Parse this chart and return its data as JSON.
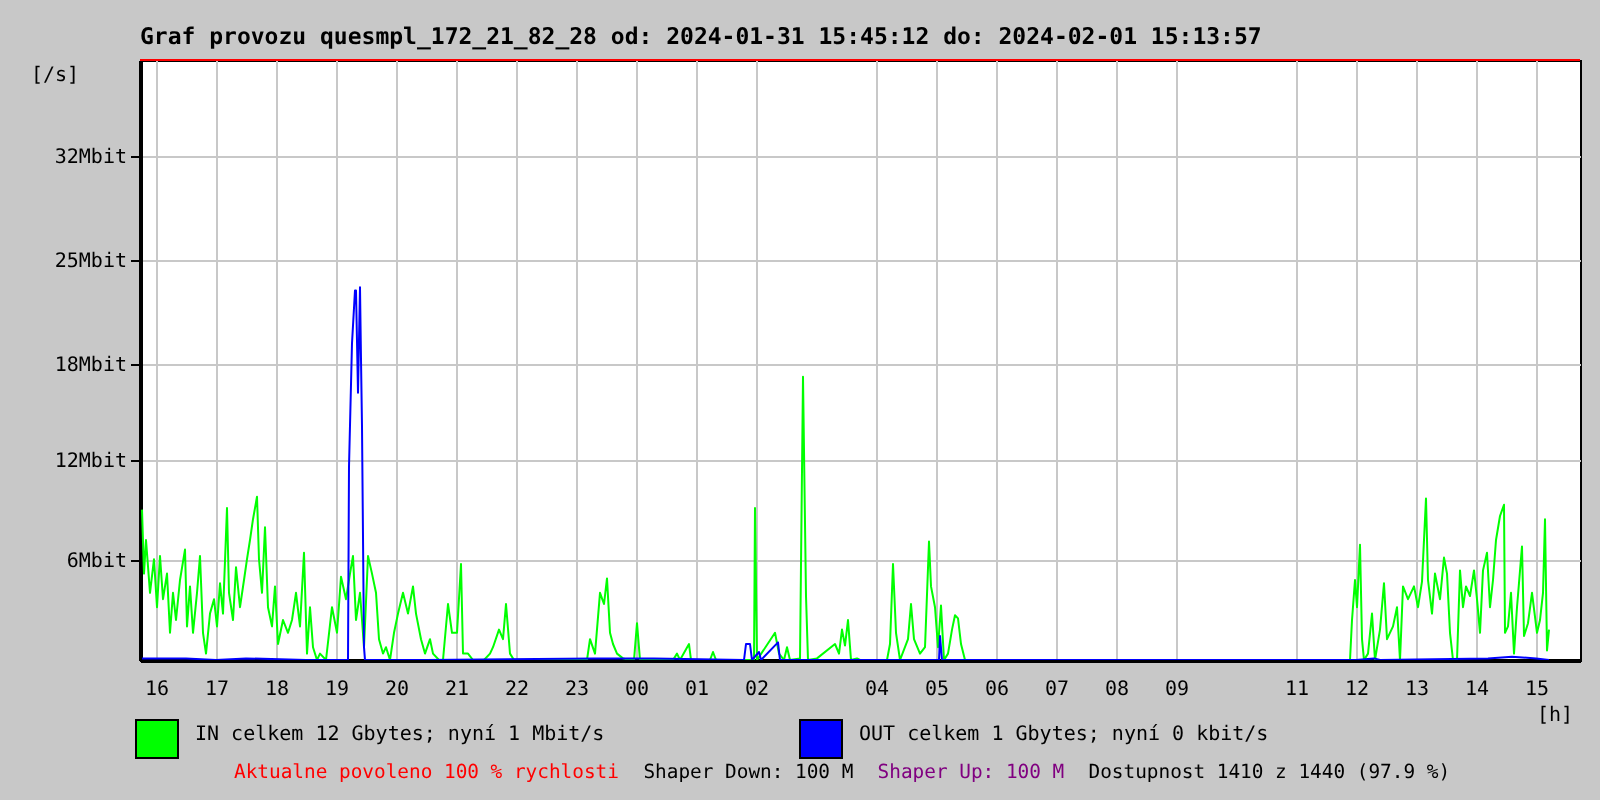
{
  "chart_data": {
    "type": "line",
    "title": "Graf provozu quesmpl_172_21_82_28 od: 2024-01-31 15:45:12 do: 2024-02-01 15:13:57",
    "xlabel": "[h]",
    "ylabel": "[/s]",
    "xlim": [
      "2024-01-31T15:44",
      "2024-02-01T15:44"
    ],
    "ylim": [
      0,
      37.5
    ],
    "xticks": [
      {
        "value": "2024-01-31T16:00",
        "label": "16"
      },
      {
        "value": "2024-01-31T17:00",
        "label": "17"
      },
      {
        "value": "2024-01-31T18:00",
        "label": "18"
      },
      {
        "value": "2024-01-31T19:00",
        "label": "19"
      },
      {
        "value": "2024-01-31T20:00",
        "label": "20"
      },
      {
        "value": "2024-01-31T21:00",
        "label": "21"
      },
      {
        "value": "2024-01-31T22:00",
        "label": "22"
      },
      {
        "value": "2024-01-31T23:00",
        "label": "23"
      },
      {
        "value": "2024-02-01T00:00",
        "label": "00"
      },
      {
        "value": "2024-02-01T01:00",
        "label": "01"
      },
      {
        "value": "2024-02-01T02:00",
        "label": "02"
      },
      {
        "value": "2024-02-01T04:00",
        "label": "04"
      },
      {
        "value": "2024-02-01T05:00",
        "label": "05"
      },
      {
        "value": "2024-02-01T06:00",
        "label": "06"
      },
      {
        "value": "2024-02-01T07:00",
        "label": "07"
      },
      {
        "value": "2024-02-01T08:00",
        "label": "08"
      },
      {
        "value": "2024-02-01T09:00",
        "label": "09"
      },
      {
        "value": "2024-02-01T11:00",
        "label": "11"
      },
      {
        "value": "2024-02-01T12:00",
        "label": "12"
      },
      {
        "value": "2024-02-01T13:00",
        "label": "13"
      },
      {
        "value": "2024-02-01T14:00",
        "label": "14"
      },
      {
        "value": "2024-02-01T15:00",
        "label": "15"
      }
    ],
    "yticks": [
      {
        "value": 6.25,
        "label": "6Mbit"
      },
      {
        "value": 12.5,
        "label": "12Mbit"
      },
      {
        "value": 18.5,
        "label": "18Mbit"
      },
      {
        "value": 25,
        "label": "25Mbit"
      },
      {
        "value": 31.5,
        "label": "32Mbit"
      }
    ],
    "series": [
      {
        "name": "IN celkem 12 Gbytes; nyní 1 Mbit/s",
        "color": "#00ff00",
        "x": [
          "2024-01-31T15:46",
          "2024-01-31T15:48",
          "2024-01-31T15:50",
          "2024-01-31T15:54",
          "2024-01-31T15:58",
          "2024-01-31T16:01",
          "2024-01-31T16:04",
          "2024-01-31T16:07",
          "2024-01-31T16:11",
          "2024-01-31T16:14",
          "2024-01-31T16:17",
          "2024-01-31T16:20",
          "2024-01-31T16:24",
          "2024-01-31T16:29",
          "2024-01-31T16:31",
          "2024-01-31T16:34",
          "2024-01-31T16:37",
          "2024-01-31T16:41",
          "2024-01-31T16:44",
          "2024-01-31T16:47",
          "2024-01-31T16:50",
          "2024-01-31T16:54",
          "2024-01-31T16:58",
          "2024-01-31T17:01",
          "2024-01-31T17:04",
          "2024-01-31T17:07",
          "2024-01-31T17:11",
          "2024-01-31T17:13",
          "2024-01-31T17:17",
          "2024-01-31T17:20",
          "2024-01-31T17:24",
          "2024-01-31T17:28",
          "2024-01-31T17:31",
          "2024-01-31T17:34",
          "2024-01-31T17:37",
          "2024-01-31T17:41",
          "2024-01-31T17:43",
          "2024-01-31T17:46",
          "2024-01-31T17:49",
          "2024-01-31T17:52",
          "2024-01-31T17:56",
          "2024-01-31T17:59",
          "2024-01-31T18:02",
          "2024-01-31T18:07",
          "2024-01-31T18:12",
          "2024-01-31T18:16",
          "2024-01-31T18:20",
          "2024-01-31T18:24",
          "2024-01-31T18:28",
          "2024-01-31T18:31",
          "2024-01-31T18:34",
          "2024-01-31T18:37",
          "2024-01-31T18:41",
          "2024-01-31T18:44",
          "2024-01-31T18:50",
          "2024-01-31T18:56",
          "2024-01-31T19:01",
          "2024-01-31T19:05",
          "2024-01-31T19:10",
          "2024-01-31T19:14",
          "2024-01-31T19:17",
          "2024-01-31T19:20",
          "2024-01-31T19:24",
          "2024-01-31T19:28",
          "2024-01-31T19:32",
          "2024-01-31T19:36",
          "2024-01-31T19:40",
          "2024-01-31T19:43",
          "2024-01-31T19:47",
          "2024-01-31T19:50",
          "2024-01-31T19:54",
          "2024-01-31T19:58",
          "2024-01-31T20:02",
          "2024-01-31T20:07",
          "2024-01-31T20:12",
          "2024-01-31T20:17",
          "2024-01-31T20:20",
          "2024-01-31T20:25",
          "2024-01-31T20:29",
          "2024-01-31T20:34",
          "2024-01-31T20:37",
          "2024-01-31T20:43",
          "2024-01-31T20:47",
          "2024-01-31T20:52",
          "2024-01-31T20:56",
          "2024-01-31T21:01",
          "2024-01-31T21:05",
          "2024-01-31T21:07",
          "2024-01-31T21:12",
          "2024-01-31T21:17",
          "2024-01-31T21:28",
          "2024-01-31T21:34",
          "2024-01-31T21:37",
          "2024-01-31T21:43",
          "2024-01-31T21:47",
          "2024-01-31T21:50",
          "2024-01-31T21:54",
          "2024-01-31T21:58",
          "2024-01-31T23:11",
          "2024-01-31T23:14",
          "2024-01-31T23:19",
          "2024-01-31T23:24",
          "2024-01-31T23:28",
          "2024-01-31T23:31",
          "2024-01-31T23:34",
          "2024-01-31T23:37",
          "2024-01-31T23:41",
          "2024-01-31T23:47",
          "2024-01-31T23:54",
          "2024-01-31T23:58",
          "2024-02-01T00:01",
          "2024-02-01T00:04",
          "2024-02-01T00:37",
          "2024-02-01T00:41",
          "2024-02-01T00:44",
          "2024-02-01T00:53",
          "2024-02-01T00:55",
          "2024-02-01T01:14",
          "2024-02-01T01:17",
          "2024-02-01T01:20",
          "2024-02-01T01:58",
          "2024-02-01T01:59",
          "2024-02-01T02:01",
          "2024-02-01T02:19",
          "2024-02-01T02:23",
          "2024-02-01T02:28",
          "2024-02-01T02:31",
          "2024-02-01T02:34",
          "2024-02-01T02:44",
          "2024-02-01T02:47",
          "2024-02-01T02:50",
          "2024-02-01T02:52",
          "2024-02-01T03:01",
          "2024-02-01T03:19",
          "2024-02-01T03:23",
          "2024-02-01T03:26",
          "2024-02-01T03:29",
          "2024-02-01T03:32",
          "2024-02-01T03:35",
          "2024-02-01T03:41",
          "2024-02-01T03:44",
          "2024-02-01T04:11",
          "2024-02-01T04:14",
          "2024-02-01T04:17",
          "2024-02-01T04:20",
          "2024-02-01T04:24",
          "2024-02-01T04:32",
          "2024-02-01T04:35",
          "2024-02-01T04:38",
          "2024-02-01T04:44",
          "2024-02-01T04:49",
          "2024-02-01T04:53",
          "2024-02-01T04:55",
          "2024-02-01T04:59",
          "2024-02-01T05:02",
          "2024-02-01T05:05",
          "2024-02-01T05:08",
          "2024-02-01T05:12",
          "2024-02-01T05:16",
          "2024-02-01T05:19",
          "2024-02-01T05:22",
          "2024-02-01T05:25",
          "2024-02-01T05:29",
          "2024-02-01T11:54",
          "2024-02-01T11:56",
          "2024-02-01T11:59",
          "2024-02-01T12:01",
          "2024-02-01T12:04",
          "2024-02-01T12:06",
          "2024-02-01T12:08",
          "2024-02-01T12:12",
          "2024-02-01T12:16",
          "2024-02-01T12:19",
          "2024-02-01T12:24",
          "2024-02-01T12:28",
          "2024-02-01T12:31",
          "2024-02-01T12:37",
          "2024-02-01T12:41",
          "2024-02-01T12:44",
          "2024-02-01T12:47",
          "2024-02-01T12:52",
          "2024-02-01T12:58",
          "2024-02-01T13:02",
          "2024-02-01T13:06",
          "2024-02-01T13:10",
          "2024-02-01T13:12",
          "2024-02-01T13:16",
          "2024-02-01T13:19",
          "2024-02-01T13:24",
          "2024-02-01T13:28",
          "2024-02-01T13:31",
          "2024-02-01T13:34",
          "2024-02-01T13:37",
          "2024-02-01T13:41",
          "2024-02-01T13:44",
          "2024-02-01T13:47",
          "2024-02-01T13:50",
          "2024-02-01T13:54",
          "2024-02-01T13:58",
          "2024-02-01T14:01",
          "2024-02-01T14:04",
          "2024-02-01T14:07",
          "2024-02-01T14:11",
          "2024-02-01T14:14",
          "2024-02-01T14:17",
          "2024-02-01T14:20",
          "2024-02-01T14:24",
          "2024-02-01T14:28",
          "2024-02-01T14:29",
          "2024-02-01T14:32",
          "2024-02-01T14:35",
          "2024-02-01T14:38",
          "2024-02-01T14:41",
          "2024-02-01T14:46",
          "2024-02-01T14:48",
          "2024-02-01T14:52",
          "2024-02-01T14:56",
          "2024-02-01T15:01",
          "2024-02-01T15:04",
          "2024-02-01T15:07",
          "2024-02-01T15:09",
          "2024-02-01T15:11",
          "2024-02-01T15:13"
        ],
        "values": [
          9.4,
          5.4,
          7.5,
          4.2,
          6.3,
          3.3,
          6.5,
          3.8,
          5.4,
          1.7,
          4.2,
          2.5,
          5.0,
          6.9,
          2.1,
          4.6,
          1.7,
          4.2,
          6.5,
          1.7,
          0.4,
          2.9,
          3.8,
          2.1,
          4.8,
          2.9,
          9.5,
          4.2,
          2.5,
          5.8,
          3.3,
          5.0,
          6.3,
          7.5,
          8.8,
          10.2,
          6.3,
          4.2,
          8.3,
          3.3,
          2.1,
          4.6,
          1.0,
          2.5,
          1.7,
          2.5,
          4.2,
          2.1,
          6.7,
          0.4,
          3.3,
          0.8,
          0,
          0.4,
          0,
          3.3,
          1.7,
          5.2,
          3.8,
          5.4,
          6.5,
          2.5,
          4.2,
          0.8,
          6.5,
          5.4,
          4.2,
          1.3,
          0.4,
          0.8,
          0,
          1.7,
          2.9,
          4.2,
          2.9,
          4.6,
          2.9,
          1.3,
          0.4,
          1.3,
          0.4,
          0,
          0,
          3.5,
          1.7,
          1.7,
          6.0,
          0.4,
          0.4,
          0,
          0,
          0.4,
          0.8,
          1.9,
          1.3,
          3.5,
          0.4,
          0,
          0,
          1.3,
          0.4,
          4.2,
          3.5,
          5.1,
          1.7,
          1.0,
          0.4,
          0.1,
          0,
          0,
          2.3,
          0,
          0,
          0.4,
          0,
          1.0,
          0,
          0,
          0.5,
          0,
          0,
          9.5,
          0,
          1.7,
          0.4,
          0,
          0.8,
          0,
          0.1,
          17.7,
          4.0,
          0,
          0.1,
          1.0,
          0.4,
          1.9,
          0.9,
          2.5,
          0,
          0.1,
          0,
          0,
          1.0,
          6.0,
          1.7,
          0,
          1.3,
          3.5,
          1.3,
          0.4,
          0.8,
          7.4,
          4.6,
          3.3,
          0.8,
          3.4,
          0,
          0.4,
          1.9,
          2.8,
          2.6,
          1.0,
          0,
          0,
          2.5,
          5.0,
          3.3,
          7.2,
          1.3,
          0,
          0.4,
          2.9,
          0,
          1.9,
          4.8,
          1.3,
          2.1,
          3.3,
          0,
          4.6,
          3.8,
          4.6,
          3.3,
          4.9,
          10.1,
          5.0,
          2.9,
          5.4,
          3.8,
          6.4,
          5.4,
          1.7,
          0,
          0,
          5.6,
          3.3,
          4.6,
          4.0,
          5.6,
          3.8,
          1.7,
          5.6,
          6.7,
          3.3,
          5.0,
          7.5,
          9.0,
          9.7,
          1.7,
          2.1,
          4.2,
          0.4,
          3.3,
          7.1,
          1.5,
          2.3,
          4.2,
          1.7,
          2.5,
          4.2,
          8.8,
          0.6,
          1.9
        ]
      },
      {
        "name": "OUT celkem 1 Gbytes; nyní 0 kbit/s",
        "color": "#0000ff",
        "x": [
          "2024-01-31T15:46",
          "2024-01-31T16:30",
          "2024-01-31T17:00",
          "2024-01-31T17:30",
          "2024-01-31T18:30",
          "2024-01-31T19:12",
          "2024-01-31T19:13",
          "2024-01-31T19:16",
          "2024-01-31T19:19",
          "2024-01-31T19:20",
          "2024-01-31T19:22",
          "2024-01-31T19:24",
          "2024-01-31T19:25",
          "2024-01-31T19:26",
          "2024-01-31T19:28",
          "2024-01-31T19:29",
          "2024-01-31T20:30",
          "2024-01-31T23:18",
          "2024-02-01T00:18",
          "2024-02-01T01:48",
          "2024-02-01T01:50",
          "2024-02-01T01:54",
          "2024-02-01T01:56",
          "2024-02-01T02:03",
          "2024-02-01T02:05",
          "2024-02-01T02:22",
          "2024-02-01T02:24",
          "2024-02-01T05:03",
          "2024-02-01T05:04",
          "2024-02-01T05:06",
          "2024-02-01T05:30",
          "2024-02-01T12:00",
          "2024-02-01T12:18",
          "2024-02-01T12:24",
          "2024-02-01T14:12",
          "2024-02-01T14:36",
          "2024-02-01T15:00",
          "2024-02-01T15:13"
        ],
        "values": [
          0.1,
          0.1,
          0,
          0.1,
          0,
          0,
          12.1,
          19.8,
          23.1,
          23.1,
          16.7,
          23.3,
          18.8,
          14.6,
          0.8,
          0,
          0,
          0.1,
          0.1,
          0,
          1.0,
          1.0,
          0,
          0.5,
          0,
          1.1,
          0,
          0,
          1.5,
          0,
          0,
          0,
          0.1,
          0,
          0.1,
          0.2,
          0.1,
          0
        ]
      }
    ],
    "ref_lines": [
      {
        "axis": "y",
        "value": 37.5,
        "label": "Aktualne povoleno 100 % rychlosti",
        "color": "#ff0000"
      }
    ],
    "annotations": [
      "Shaper Down: 100 M",
      "Shaper Up: 100 M",
      "Dostupnost 1410 z 1440 (97.9 %)"
    ],
    "grid": true,
    "legend": "bottom"
  }
}
